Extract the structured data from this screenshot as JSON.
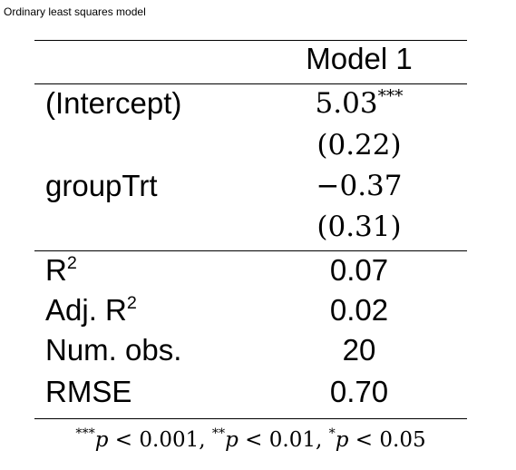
{
  "caption": "Ordinary least squares model",
  "table": {
    "header": {
      "column": "Model 1"
    },
    "coefficients": [
      {
        "label": "(Intercept)",
        "estimate": "5.03",
        "stars": "***",
        "se": "(0.22)"
      },
      {
        "label": "groupTrt",
        "estimate": "−0.37",
        "stars": "",
        "se": "(0.31)"
      }
    ],
    "gof": [
      {
        "label_main": "R",
        "label_sup": "2",
        "label_pre": "",
        "value": "0.07"
      },
      {
        "label_main": "R",
        "label_sup": "2",
        "label_pre": "Adj. ",
        "value": "0.02"
      },
      {
        "label_main": "Num. obs.",
        "label_sup": "",
        "label_pre": "",
        "value": "20"
      },
      {
        "label_main": "RMSE",
        "label_sup": "",
        "label_pre": "",
        "value": "0.70"
      }
    ]
  },
  "footnote": {
    "items": [
      {
        "stars": "***",
        "var": "p",
        "op": " < ",
        "threshold": "0.001"
      },
      {
        "stars": "**",
        "var": "p",
        "op": " < ",
        "threshold": "0.01"
      },
      {
        "stars": "*",
        "var": "p",
        "op": " < ",
        "threshold": "0.05"
      }
    ],
    "separator": ", "
  }
}
